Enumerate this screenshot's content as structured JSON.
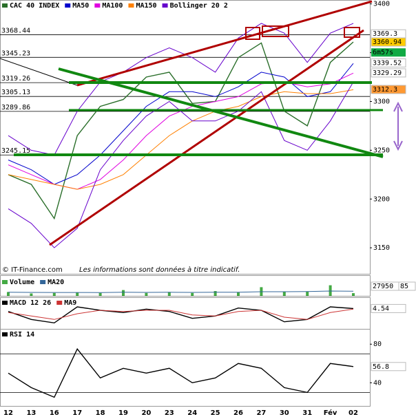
{
  "chart_data": [
    {
      "type": "line",
      "title": "CAC 40 INDEX",
      "categories": [
        "12",
        "13",
        "16",
        "17",
        "18",
        "19",
        "20",
        "23",
        "24",
        "25",
        "26",
        "27",
        "30",
        "31",
        "Fév",
        "02"
      ],
      "values": [
        3225,
        3215,
        3180,
        3265,
        3295,
        3302,
        3325,
        3330,
        3298,
        3300,
        3345,
        3360,
        3290,
        3275,
        3340,
        3361
      ],
      "color": "#2a6e2a",
      "series": [
        {
          "name": "MA50",
          "color": "#0000cc",
          "values": [
            3240,
            3230,
            3215,
            3225,
            3245,
            3270,
            3295,
            3310,
            3310,
            3305,
            3315,
            3330,
            3325,
            3305,
            3310,
            3339
          ]
        },
        {
          "name": "MA100",
          "color": "#e000e0",
          "values": [
            3235,
            3225,
            3215,
            3210,
            3220,
            3240,
            3265,
            3285,
            3295,
            3300,
            3305,
            3318,
            3320,
            3315,
            3318,
            3329
          ]
        },
        {
          "name": "MA150",
          "color": "#ff8000",
          "values": [
            3225,
            3220,
            3215,
            3210,
            3215,
            3225,
            3245,
            3265,
            3280,
            3290,
            3295,
            3305,
            3310,
            3308,
            3308,
            3312
          ]
        },
        {
          "name": "Bollinger 20 2",
          "color": "#6600cc",
          "upper": [
            3265,
            3250,
            3245,
            3290,
            3320,
            3330,
            3345,
            3355,
            3345,
            3330,
            3365,
            3380,
            3370,
            3340,
            3370,
            3380
          ],
          "lower": [
            3190,
            3175,
            3150,
            3170,
            3230,
            3260,
            3285,
            3300,
            3280,
            3280,
            3290,
            3310,
            3260,
            3250,
            3280,
            3320
          ]
        }
      ],
      "ylim": [
        3136,
        3404
      ],
      "yticks": [
        3150,
        3200,
        3250,
        3300,
        3350,
        3400
      ],
      "levels": [
        3368.44,
        3345.23,
        3319.26,
        3305.13,
        3289.86,
        3245.15
      ],
      "last_labels": [
        3369.3,
        3360.94,
        3339.52,
        3329.29,
        3312.3
      ],
      "timer": "6m57s",
      "source": "© IT-Finance.com",
      "note": "Les informations sont données à titre indicatif."
    },
    {
      "type": "bar",
      "title": "Volume",
      "values": [
        40000,
        25000,
        30000,
        35000,
        30000,
        60000,
        30000,
        40000,
        30000,
        50000,
        35000,
        90000,
        40000,
        45000,
        110000,
        27950
      ],
      "color": "#44aa44",
      "series": [
        {
          "name": "MA20",
          "color": "#336699",
          "values": [
            38000,
            36000,
            35000,
            35000,
            34000,
            37000,
            36000,
            37000,
            36000,
            38000,
            38000,
            43000,
            43000,
            44000,
            50000,
            48000
          ]
        }
      ],
      "ylim": [
        0,
        200000
      ],
      "last_labels": [
        27950,
        85
      ]
    },
    {
      "type": "line",
      "title": "MACD 12 26",
      "values": [
        2,
        -5,
        -8,
        6,
        3,
        1,
        4,
        2,
        -4,
        -2,
        5,
        3,
        -7,
        -5,
        6,
        4.54
      ],
      "color": "#000000",
      "series": [
        {
          "name": "MA9",
          "color": "#cc3333",
          "values": [
            1,
            -2,
            -5,
            0,
            3,
            2,
            3,
            3,
            -1,
            -2,
            2,
            3,
            -3,
            -5,
            1,
            4
          ]
        }
      ],
      "ylim": [
        -12,
        12
      ],
      "last_labels": [
        4.54
      ]
    },
    {
      "type": "line",
      "title": "RSI 14",
      "values": [
        50,
        35,
        25,
        75,
        45,
        55,
        50,
        55,
        40,
        45,
        60,
        55,
        35,
        30,
        60,
        56.8
      ],
      "color": "#000000",
      "ylim": [
        16,
        93
      ],
      "yticks": [
        40,
        80
      ],
      "levels": [
        30,
        70
      ],
      "last_labels": [
        56.8
      ]
    }
  ]
}
